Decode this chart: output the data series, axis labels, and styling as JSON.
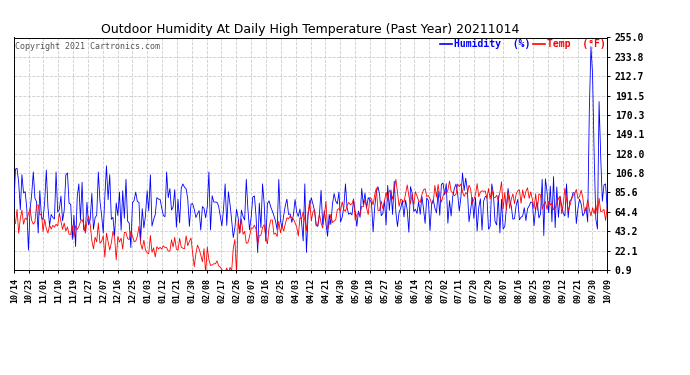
{
  "title": "Outdoor Humidity At Daily High Temperature (Past Year) 20211014",
  "copyright_text": "Copyright 2021 Cartronics.com",
  "legend_humidity": "Humidity  (%)",
  "legend_temp": "Temp  (°F)",
  "humidity_color": "#0000FF",
  "temp_color": "#FF0000",
  "background_color": "#FFFFFF",
  "grid_color": "#CCCCCC",
  "yticks": [
    0.9,
    22.1,
    43.2,
    64.4,
    85.6,
    106.8,
    128.0,
    149.1,
    170.3,
    191.5,
    212.7,
    233.8,
    255.0
  ],
  "ytick_labels": [
    "0.9",
    "22.1",
    "43.2",
    "64.4",
    "85.6",
    "106.8",
    "128.0",
    "149.1",
    "170.3",
    "191.5",
    "212.7",
    "233.8",
    "255.0"
  ],
  "ymin": 0.9,
  "ymax": 255.0,
  "x_labels": [
    "10/14",
    "10/23",
    "11/01",
    "11/10",
    "11/19",
    "11/27",
    "12/07",
    "12/16",
    "12/25",
    "01/03",
    "01/12",
    "01/21",
    "01/30",
    "02/08",
    "02/17",
    "02/26",
    "03/07",
    "03/16",
    "03/25",
    "04/03",
    "04/12",
    "04/21",
    "04/30",
    "05/09",
    "05/18",
    "05/27",
    "06/05",
    "06/14",
    "06/23",
    "07/02",
    "07/11",
    "07/20",
    "07/29",
    "08/07",
    "08/16",
    "08/25",
    "09/03",
    "09/12",
    "09/21",
    "09/30",
    "10/09"
  ]
}
